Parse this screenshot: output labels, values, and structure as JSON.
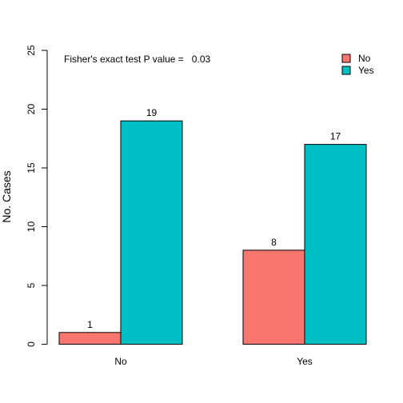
{
  "chart_data": {
    "type": "bar",
    "categories": [
      "No",
      "Yes"
    ],
    "series": [
      {
        "name": "No",
        "values": [
          1,
          8
        ],
        "color": "#F8766D"
      },
      {
        "name": "Yes",
        "values": [
          19,
          17
        ],
        "color": "#00BFC4"
      }
    ],
    "title": "",
    "xlabel": "",
    "ylabel": "No. Cases",
    "ylim": [
      0,
      25
    ],
    "yticks": [
      0,
      5,
      10,
      15,
      20,
      25
    ],
    "annotation": "Fisher's exact test P value =   0.03",
    "legend": {
      "placement": "top-right",
      "entries": [
        "No",
        "Yes"
      ]
    },
    "grid": false
  }
}
